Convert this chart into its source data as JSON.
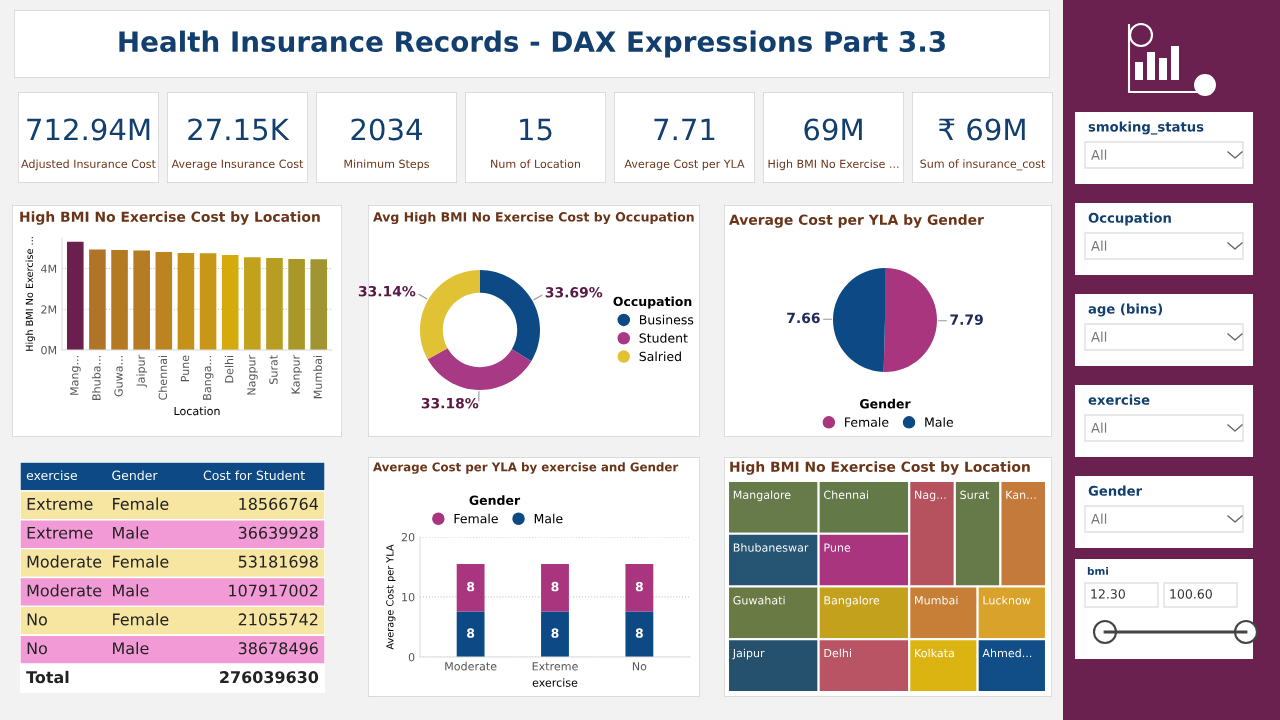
{
  "chart_data": [
    {
      "type": "other",
      "title": "Health Insurance Records - DAX Expressions Part 3.3"
    },
    {
      "type": "other",
      "categories": [
        "Adjusted Insurance Cost",
        "Average Insurance Cost",
        "Minimum Steps",
        "Num of Location",
        "Average Cost per YLA",
        "High BMI No Exercise ...",
        "Sum of insurance_cost"
      ],
      "value_labels": [
        "712.94M",
        "27.15K",
        "2034",
        "15",
        "7.71",
        "69M",
        "₹ 69M"
      ]
    },
    {
      "type": "bar",
      "title": "High BMI No Exercise Cost by Location",
      "xlabel": "Location",
      "ylabel": "High BMI No Exercise ...",
      "categories": [
        "Mang...",
        "Bhuba...",
        "Guwa...",
        "Jaipur",
        "Chennai",
        "Pune",
        "Banga...",
        "Delhi",
        "Nagpur",
        "Surat",
        "Kanpur",
        "Mumbai"
      ],
      "values": [
        5.32,
        4.93,
        4.91,
        4.89,
        4.81,
        4.76,
        4.75,
        4.67,
        4.55,
        4.52,
        4.47,
        4.46
      ],
      "colors": [
        "#6b1f4e",
        "#b07428",
        "#b47a22",
        "#b57c22",
        "#bb8420",
        "#c4911a",
        "#c99717",
        "#d4aa0c",
        "#c2a21c",
        "#b79d22",
        "#a99828",
        "#a09530"
      ],
      "ylim": [
        0,
        5.5
      ],
      "yticks": [
        {
          "value": 0,
          "label": "0M"
        },
        {
          "value": 2,
          "label": "2M"
        },
        {
          "value": 4,
          "label": "4M"
        }
      ],
      "grid": "y"
    },
    {
      "type": "donut",
      "title": "Avg High BMI No Exercise Cost by Occupation",
      "categories": [
        "Business",
        "Student",
        "Salried"
      ],
      "values": [
        33.69,
        33.18,
        33.14
      ],
      "value_labels": [
        "33.69%",
        "33.18%",
        "33.14%"
      ],
      "colors": [
        "#0d4a85",
        "#a83a85",
        "#e1c234"
      ],
      "legend": "right",
      "legend_title": "Occupation"
    },
    {
      "type": "pie",
      "title": "Average Cost per YLA by Gender",
      "categories": [
        "Female",
        "Male"
      ],
      "values": [
        7.79,
        7.66
      ],
      "colors": [
        "#a8357e",
        "#0d4a85"
      ],
      "data_labels": true,
      "legend": "bottom",
      "legend_title": "Gender"
    },
    {
      "type": "other",
      "cell_labels": [
        [
          "exercise",
          "Gender",
          "Cost for Student"
        ],
        [
          "Extreme",
          "Female",
          "18566764"
        ],
        [
          "Extreme",
          "Male",
          "36639928"
        ],
        [
          "Moderate",
          "Female",
          "53181698"
        ],
        [
          "Moderate",
          "Male",
          "107917002"
        ],
        [
          "No",
          "Female",
          "21055742"
        ],
        [
          "No",
          "Male",
          "38678496"
        ],
        [
          "Total",
          null,
          "276039630"
        ]
      ],
      "colors": [
        "#0d4a85",
        "#f6e6a2",
        "#f29ad6",
        "#f6e6a2",
        "#f29ad6",
        "#f6e6a2",
        "#f29ad6",
        "#ffffff"
      ]
    },
    {
      "type": "bar",
      "stacked": true,
      "title": "Average Cost per YLA by exercise and Gender",
      "xlabel": "exercise",
      "ylabel": "Average Cost per YLA",
      "categories": [
        "Moderate",
        "Extreme",
        "No"
      ],
      "series": [
        {
          "name": "Male",
          "color": "#0d4a85",
          "values": [
            7.6,
            7.6,
            7.6
          ],
          "value_labels": [
            "8",
            "8",
            "8"
          ]
        },
        {
          "name": "Female",
          "color": "#a8357e",
          "values": [
            7.9,
            7.9,
            7.9
          ],
          "value_labels": [
            "8",
            "8",
            "8"
          ]
        }
      ],
      "ylim": [
        0,
        20
      ],
      "yticks": [
        0,
        10,
        20
      ],
      "grid": "y",
      "legend": "top left",
      "legend_title": "Gender"
    },
    {
      "type": "other",
      "title": "High BMI No Exercise Cost by Location",
      "categories": [
        "Mangalore",
        "Bhubaneswar",
        "Guwahati",
        "Jaipur",
        "Chennai",
        "Pune",
        "Bangalore",
        "Delhi",
        "Nag...",
        "Surat",
        "Kan...",
        "Mumbai",
        "Lucknow",
        "Kolkata",
        "Ahmed..."
      ],
      "colors": [
        "#667a4a",
        "#265574",
        "#6a7a45",
        "#25506e",
        "#637a48",
        "#a8357e",
        "#c4a11c",
        "#b85464",
        "#b5525e",
        "#657a48",
        "#c47a3a",
        "#c77e36",
        "#d9a22a",
        "#dcb412",
        "#114d86"
      ]
    },
    {
      "type": "other",
      "color": "#6b2150",
      "cell_labels": [
        [
          "smoking_status",
          "All"
        ],
        [
          "Occupation",
          "All"
        ],
        [
          "age (bins)",
          "All"
        ],
        [
          "exercise",
          "All"
        ],
        [
          "Gender",
          "All"
        ],
        [
          "bmi",
          "12.30",
          "100.60"
        ]
      ]
    }
  ]
}
